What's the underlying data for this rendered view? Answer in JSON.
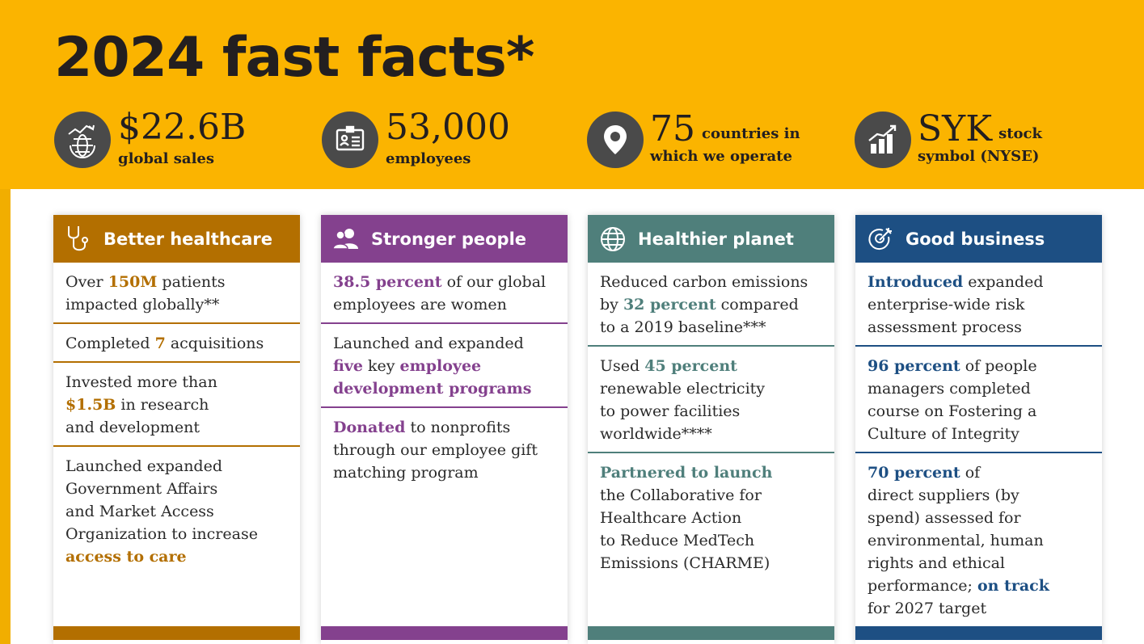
{
  "title": "2024 fast facts*",
  "stats": [
    {
      "value": "$22.6B",
      "label": "global sales",
      "icon": "globe-chart-icon"
    },
    {
      "value": "53,000",
      "label": "employees",
      "icon": "id-badge-icon"
    },
    {
      "value": "75",
      "label_line1": "countries in",
      "label_line2": "which we operate",
      "icon": "map-pin-icon"
    },
    {
      "value": "SYK",
      "label_line1": "stock",
      "label_line2": "symbol (NYSE)",
      "icon": "bar-chart-icon"
    }
  ],
  "cards": [
    {
      "title": "Better healthcare",
      "color": "#b36f00",
      "items": {
        "a1": "Over ",
        "a2": "150M",
        "a3": " patients",
        "a4": "impacted globally**",
        "b1": "Completed ",
        "b2": "7",
        "b3": " acquisitions",
        "c1": "Invested more than",
        "c2": "$1.5B",
        "c3": " in research",
        "c4": "and development",
        "d1": "Launched expanded",
        "d2": "Government Affairs",
        "d3": "and Market Access",
        "d4": "Organization to increase",
        "d5": "access to care"
      }
    },
    {
      "title": "Stronger people",
      "color": "#84418e",
      "items": {
        "a1": "38.5 percent",
        "a2": " of our global",
        "a3": "employees are women",
        "b1": "Launched and expanded",
        "b2": "five",
        "b3": " key ",
        "b4": "employee",
        "b5": "development programs",
        "c1": "Donated",
        "c2": " to nonprofits",
        "c3": "through our employee gift",
        "c4": "matching program"
      }
    },
    {
      "title": "Healthier planet",
      "color": "#4f7f7b",
      "items": {
        "a1": "Reduced carbon emissions",
        "a2": "by ",
        "a3": "32 percent",
        "a4": " compared",
        "a5": "to a 2019 baseline***",
        "b1": "Used ",
        "b2": "45 percent",
        "b3": "renewable electricity",
        "b4": "to power facilities",
        "b5": "worldwide****",
        "c1": "Partnered to launch",
        "c2": "the Collaborative for",
        "c3": "Healthcare Action",
        "c4": "to Reduce MedTech",
        "c5": "Emissions (CHARME)"
      }
    },
    {
      "title": "Good business",
      "color": "#1d4f83",
      "items": {
        "a1": "Introduced",
        "a2": " expanded",
        "a3": "enterprise-wide risk",
        "a4": "assessment process",
        "b1": "96 percent",
        "b2": " of people",
        "b3": "managers completed",
        "b4": "course on Fostering a",
        "b5": "Culture of Integrity",
        "c1": "70 percent",
        "c2": " of",
        "c3": "direct suppliers (by",
        "c4": "spend) assessed for",
        "c5": "environmental, human",
        "c6": "rights and ethical",
        "c7": "performance; ",
        "c8": "on track",
        "c9": "for 2027 target"
      }
    }
  ]
}
